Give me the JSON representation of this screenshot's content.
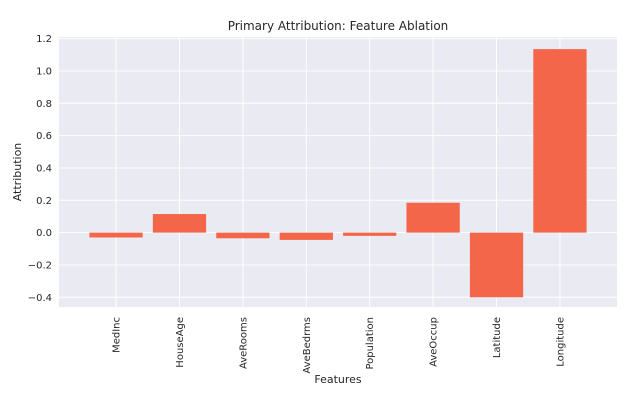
{
  "chart_data": {
    "type": "bar",
    "title": "Primary Attribution: Feature Ablation",
    "xlabel": "Features",
    "ylabel": "Attribution",
    "categories": [
      "MedInc",
      "HouseAge",
      "AveRooms",
      "AveBedrms",
      "Population",
      "AveOccup",
      "Latitude",
      "Longitude"
    ],
    "values": [
      -0.03,
      0.115,
      -0.035,
      -0.045,
      -0.02,
      0.185,
      -0.4,
      1.135
    ],
    "ylim": [
      -0.46,
      1.21
    ],
    "yticks": [
      -0.4,
      -0.2,
      0.0,
      0.2,
      0.4,
      0.6,
      0.8,
      1.0,
      1.2
    ],
    "ytick_labels": [
      "−0.4",
      "−0.2",
      "0.0",
      "0.2",
      "0.4",
      "0.6",
      "0.8",
      "1.0",
      "1.2"
    ],
    "grid": true,
    "bar_color": "#f4664a",
    "background_color": "#eaeaf2",
    "grid_color": "#ffffff"
  }
}
